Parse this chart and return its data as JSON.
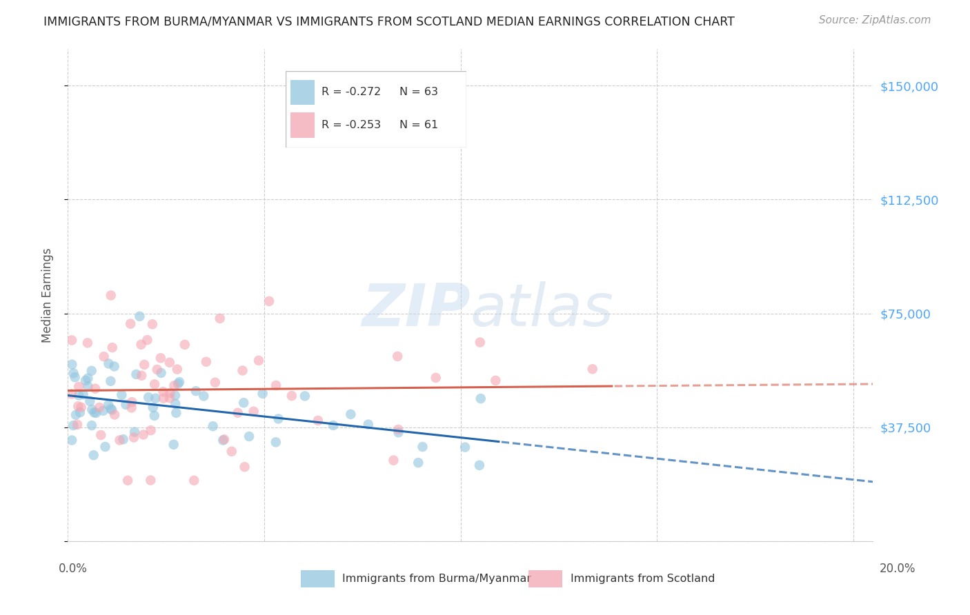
{
  "title": "IMMIGRANTS FROM BURMA/MYANMAR VS IMMIGRANTS FROM SCOTLAND MEDIAN EARNINGS CORRELATION CHART",
  "source": "Source: ZipAtlas.com",
  "ylabel": "Median Earnings",
  "yticks": [
    0,
    37500,
    75000,
    112500,
    150000
  ],
  "ytick_labels": [
    "",
    "$37,500",
    "$75,000",
    "$112,500",
    "$150,000"
  ],
  "xlim": [
    0.0,
    0.205
  ],
  "ylim": [
    18000,
    162000
  ],
  "watermark_zip": "ZIP",
  "watermark_atlas": "atlas",
  "R_blue": -0.272,
  "N_blue": 63,
  "R_pink": -0.253,
  "N_pink": 61,
  "blue_color": "#92c5de",
  "pink_color": "#f4a6b2",
  "blue_line_color": "#2166ac",
  "pink_line_color": "#d6604d",
  "title_color": "#222222",
  "source_color": "#999999",
  "right_tick_color": "#4da6ff",
  "grid_color": "#cccccc",
  "background_color": "#ffffff",
  "legend_label_blue": "Immigrants from Burma/Myanmar",
  "legend_label_pink": "Immigrants from Scotland"
}
